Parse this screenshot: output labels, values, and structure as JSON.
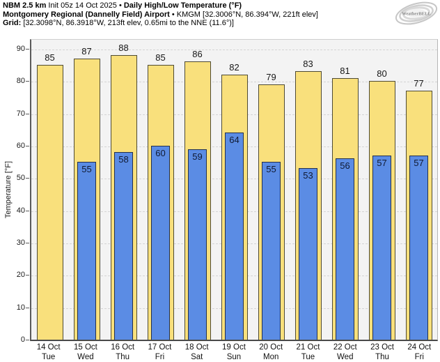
{
  "header": {
    "line1": [
      {
        "text": "NBM 2.5 km",
        "bold": true
      },
      {
        "text": " Init 05z 14 Oct 2025 ",
        "bold": false
      },
      {
        "text": "• ",
        "bold": false
      },
      {
        "text": "Daily High/Low Temperature (°F)",
        "bold": true
      }
    ],
    "line2": [
      {
        "text": "Montgomery Regional (Dannelly Field) Airport",
        "bold": true
      },
      {
        "text": " • KMGM [32.3006°N, 86.394°W, 221ft elev]",
        "bold": false
      }
    ],
    "line3": [
      {
        "text": "Grid:",
        "bold": true
      },
      {
        "text": " [32.3098°N, 86.3918°W, 213ft elev, 0.65mi to the NNE (11.6°)]",
        "bold": false
      }
    ]
  },
  "logo": {
    "text": "WeatherBELL"
  },
  "chart_data": {
    "type": "bar",
    "title": "Daily High/Low Temperature (°F)",
    "subtitle": "NBM 2.5 km Init 05z 14 Oct 2025 — Montgomery Regional (Dannelly Field) Airport • KMGM",
    "xlabel": "",
    "ylabel": "Temperature [°F]",
    "ylim": [
      0,
      93
    ],
    "yticks": [
      0,
      10,
      20,
      30,
      40,
      50,
      60,
      70,
      80,
      90
    ],
    "grid": "horizontal-dashed",
    "legend_position": "none",
    "categories": [
      {
        "date": "14 Oct",
        "day": "Tue"
      },
      {
        "date": "15 Oct",
        "day": "Wed"
      },
      {
        "date": "16 Oct",
        "day": "Thu"
      },
      {
        "date": "17 Oct",
        "day": "Fri"
      },
      {
        "date": "18 Oct",
        "day": "Sat"
      },
      {
        "date": "19 Oct",
        "day": "Sun"
      },
      {
        "date": "20 Oct",
        "day": "Mon"
      },
      {
        "date": "21 Oct",
        "day": "Tue"
      },
      {
        "date": "22 Oct",
        "day": "Wed"
      },
      {
        "date": "23 Oct",
        "day": "Thu"
      },
      {
        "date": "24 Oct",
        "day": "Fri"
      }
    ],
    "series": [
      {
        "name": "High",
        "color": "#f9e07c",
        "values": [
          85,
          87,
          88,
          85,
          86,
          82,
          79,
          83,
          81,
          80,
          77
        ]
      },
      {
        "name": "Low",
        "color": "#5b8ce4",
        "values": [
          null,
          55,
          58,
          60,
          59,
          64,
          55,
          53,
          56,
          57,
          57
        ]
      }
    ]
  },
  "colors": {
    "plot_background": "#f3f3f3",
    "page_background": "#ffffff",
    "gridline": "#d4d4d4",
    "axis": "#4a4a4a",
    "high_bar": "#f9e07c",
    "low_bar": "#5b8ce4"
  }
}
